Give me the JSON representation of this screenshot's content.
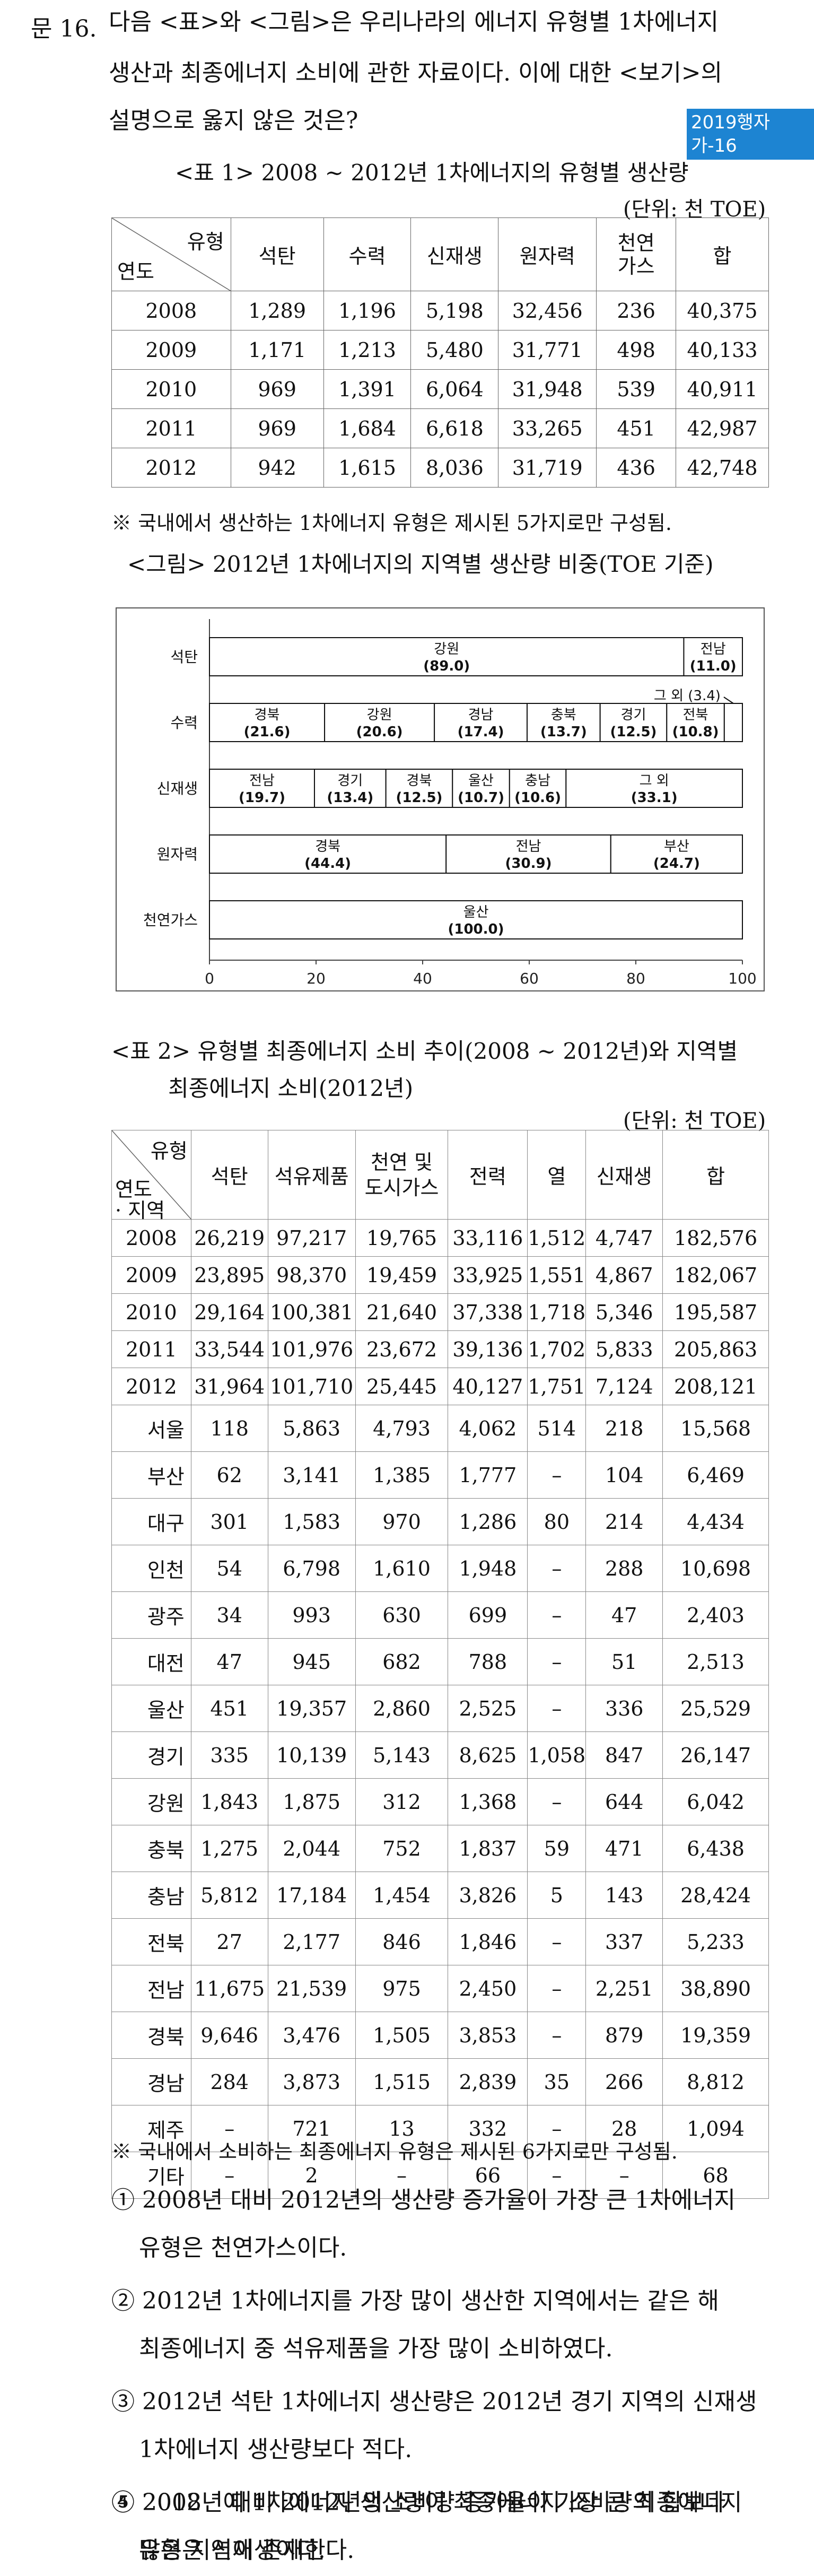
{
  "question": {
    "number": "문 16.",
    "lines": [
      "다음 <표>와 <그림>은 우리나라의 에너지 유형별 1차에너지",
      "생산과 최종에너지 소비에 관한 자료이다. 이에 대한 <보기>의",
      "설명으로 옳지 않은 것은?"
    ],
    "source_badge": "2019행자가-16"
  },
  "table1": {
    "title": "<표 1> 2008 ~ 2012년 1차에너지의 유형별 생산량",
    "unit": "(단위: 천 TOE)",
    "corner_type": "유형",
    "corner_year": "연도",
    "headers": [
      "석탄",
      "수력",
      "신재생",
      "원자력",
      "천연가스",
      "합"
    ],
    "rows": [
      [
        "2008",
        "1,289",
        "1,196",
        "5,198",
        "32,456",
        "236",
        "40,375"
      ],
      [
        "2009",
        "1,171",
        "1,213",
        "5,480",
        "31,771",
        "498",
        "40,133"
      ],
      [
        "2010",
        "969",
        "1,391",
        "6,064",
        "31,948",
        "539",
        "40,911"
      ],
      [
        "2011",
        "969",
        "1,684",
        "6,618",
        "33,265",
        "451",
        "42,987"
      ],
      [
        "2012",
        "942",
        "1,615",
        "8,036",
        "31,719",
        "436",
        "42,748"
      ]
    ],
    "note": "※ 국내에서 생산하는 1차에너지 유형은 제시된 5가지로만 구성됨."
  },
  "figure": {
    "title": "<그림> 2012년 1차에너지의 지역별 생산량 비중(TOE 기준)"
  },
  "chart_data": {
    "type": "bar",
    "stacked": true,
    "orientation": "horizontal",
    "categories": [
      "석탄",
      "수력",
      "신재생",
      "원자력",
      "천연가스"
    ],
    "xlim": [
      0,
      100
    ],
    "xticks": [
      "0",
      "20",
      "40",
      "60",
      "80",
      "100"
    ],
    "xunit": "(%)",
    "rows": [
      {
        "category": "석탄",
        "segments": [
          {
            "label": "강원",
            "value": 89.0,
            "text": "(89.0)"
          },
          {
            "label": "전남",
            "value": 11.0,
            "text": "(11.0)"
          }
        ]
      },
      {
        "category": "수력",
        "segments": [
          {
            "label": "경북",
            "value": 21.6,
            "text": "(21.6)"
          },
          {
            "label": "강원",
            "value": 20.6,
            "text": "(20.6)"
          },
          {
            "label": "경남",
            "value": 17.4,
            "text": "(17.4)"
          },
          {
            "label": "충북",
            "value": 13.7,
            "text": "(13.7)"
          },
          {
            "label": "경기",
            "value": 12.5,
            "text": "(12.5)"
          },
          {
            "label": "전북",
            "value": 10.8,
            "text": "(10.8)"
          },
          {
            "label": "그 외",
            "value": 3.4,
            "text": "(3.4)",
            "callout": true
          }
        ]
      },
      {
        "category": "신재생",
        "segments": [
          {
            "label": "전남",
            "value": 19.7,
            "text": "(19.7)"
          },
          {
            "label": "경기",
            "value": 13.4,
            "text": "(13.4)"
          },
          {
            "label": "경북",
            "value": 12.5,
            "text": "(12.5)"
          },
          {
            "label": "울산",
            "value": 10.7,
            "text": "(10.7)"
          },
          {
            "label": "충남",
            "value": 10.6,
            "text": "(10.6)"
          },
          {
            "label": "그 외",
            "value": 33.1,
            "text": "(33.1)"
          }
        ]
      },
      {
        "category": "원자력",
        "segments": [
          {
            "label": "경북",
            "value": 44.4,
            "text": "(44.4)"
          },
          {
            "label": "전남",
            "value": 30.9,
            "text": "(30.9)"
          },
          {
            "label": "부산",
            "value": 24.7,
            "text": "(24.7)"
          }
        ]
      },
      {
        "category": "천연가스",
        "segments": [
          {
            "label": "울산",
            "value": 100.0,
            "text": "(100.0)"
          }
        ]
      }
    ]
  },
  "table2": {
    "title_lines": [
      "<표 2> 유형별 최종에너지 소비 추이(2008 ~ 2012년)와 지역별",
      "최종에너지 소비(2012년)"
    ],
    "unit": "(단위: 천 TOE)",
    "corner_type": "유형",
    "corner_year": "연도",
    "corner_region": "· 지역",
    "headers": [
      "석탄",
      "석유제품",
      "천연 및\n도시가스",
      "전력",
      "열",
      "신재생",
      "합"
    ],
    "year_rows": [
      [
        "2008",
        "26,219",
        "97,217",
        "19,765",
        "33,116",
        "1,512",
        "4,747",
        "182,576"
      ],
      [
        "2009",
        "23,895",
        "98,370",
        "19,459",
        "33,925",
        "1,551",
        "4,867",
        "182,067"
      ],
      [
        "2010",
        "29,164",
        "100,381",
        "21,640",
        "37,338",
        "1,718",
        "5,346",
        "195,587"
      ],
      [
        "2011",
        "33,544",
        "101,976",
        "23,672",
        "39,136",
        "1,702",
        "5,833",
        "205,863"
      ],
      [
        "2012",
        "31,964",
        "101,710",
        "25,445",
        "40,127",
        "1,751",
        "7,124",
        "208,121"
      ]
    ],
    "region_rows": [
      [
        "서울",
        "118",
        "5,863",
        "4,793",
        "4,062",
        "514",
        "218",
        "15,568"
      ],
      [
        "부산",
        "62",
        "3,141",
        "1,385",
        "1,777",
        "–",
        "104",
        "6,469"
      ],
      [
        "대구",
        "301",
        "1,583",
        "970",
        "1,286",
        "80",
        "214",
        "4,434"
      ],
      [
        "인천",
        "54",
        "6,798",
        "1,610",
        "1,948",
        "–",
        "288",
        "10,698"
      ],
      [
        "광주",
        "34",
        "993",
        "630",
        "699",
        "–",
        "47",
        "2,403"
      ],
      [
        "대전",
        "47",
        "945",
        "682",
        "788",
        "–",
        "51",
        "2,513"
      ],
      [
        "울산",
        "451",
        "19,357",
        "2,860",
        "2,525",
        "–",
        "336",
        "25,529"
      ],
      [
        "경기",
        "335",
        "10,139",
        "5,143",
        "8,625",
        "1,058",
        "847",
        "26,147"
      ],
      [
        "강원",
        "1,843",
        "1,875",
        "312",
        "1,368",
        "–",
        "644",
        "6,042"
      ],
      [
        "충북",
        "1,275",
        "2,044",
        "752",
        "1,837",
        "59",
        "471",
        "6,438"
      ],
      [
        "충남",
        "5,812",
        "17,184",
        "1,454",
        "3,826",
        "5",
        "143",
        "28,424"
      ],
      [
        "전북",
        "27",
        "2,177",
        "846",
        "1,846",
        "–",
        "337",
        "5,233"
      ],
      [
        "전남",
        "11,675",
        "21,539",
        "975",
        "2,450",
        "–",
        "2,251",
        "38,890"
      ],
      [
        "경북",
        "9,646",
        "3,476",
        "1,505",
        "3,853",
        "–",
        "879",
        "19,359"
      ],
      [
        "경남",
        "284",
        "3,873",
        "1,515",
        "2,839",
        "35",
        "266",
        "8,812"
      ],
      [
        "제주",
        "–",
        "721",
        "13",
        "332",
        "–",
        "28",
        "1,094"
      ],
      [
        "기타",
        "–",
        "2",
        "–",
        "66",
        "–",
        "–",
        "68"
      ]
    ],
    "note": "※ 국내에서 소비하는 최종에너지 유형은 제시된 6가지로만 구성됨."
  },
  "options": [
    [
      "① 2008년 대비 2012년의 생산량 증가율이 가장 큰 1차에너지",
      "유형은 천연가스이다."
    ],
    [
      "② 2012년 1차에너지를 가장 많이 생산한 지역에서는 같은 해",
      "최종에너지 중 석유제품을 가장 많이 소비하였다."
    ],
    [
      "③ 2012년 석탄 1차에너지 생산량은 2012년 경기 지역의 신재생",
      "1차에너지 생산량보다 적다."
    ],
    [
      "④ 2012년에 1차에너지 생산량이 최종에너지 소비량의 합보다",
      "많은 지역이 존재한다."
    ],
    [
      "⑤ 2008년 대비 2012년의 소비량 증가율이 가장 큰 최종에너지",
      "유형은 신재생이다."
    ]
  ]
}
